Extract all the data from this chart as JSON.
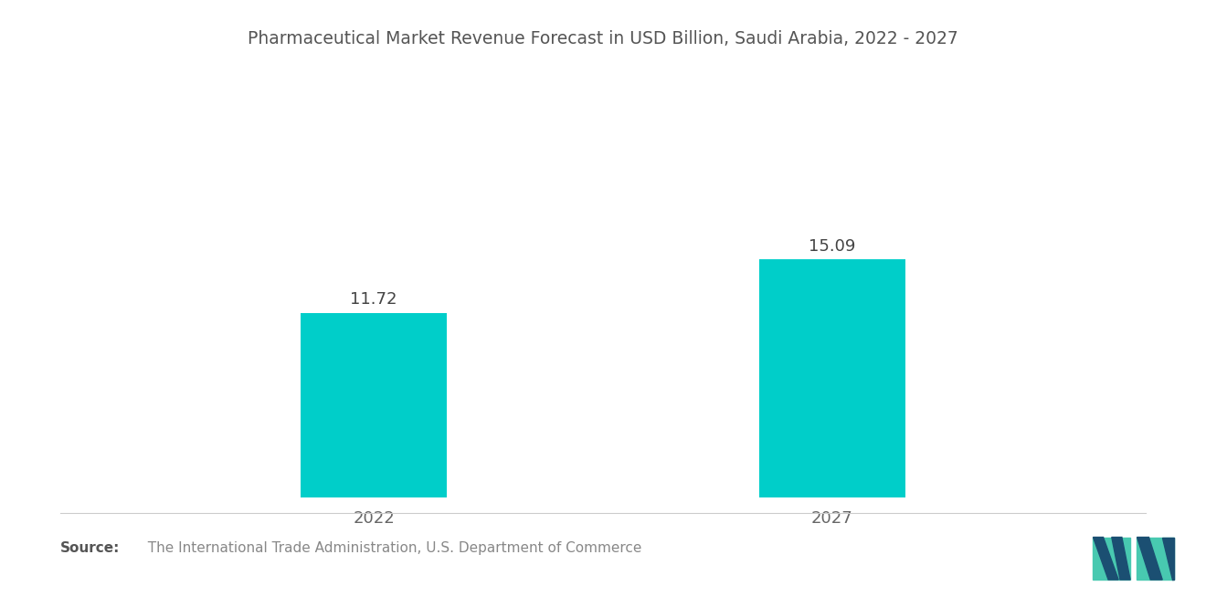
{
  "title": "Pharmaceutical Market Revenue Forecast in USD Billion, Saudi Arabia, 2022 - 2027",
  "categories": [
    "2022",
    "2027"
  ],
  "values": [
    11.72,
    15.09
  ],
  "bar_color": "#00CEC9",
  "value_labels": [
    "11.72",
    "15.09"
  ],
  "ylim": [
    0,
    20
  ],
  "title_fontsize": 13.5,
  "label_fontsize": 13,
  "value_fontsize": 13,
  "source_bold": "Source:",
  "source_text": "  The International Trade Administration, U.S. Department of Commerce",
  "source_fontsize": 11,
  "background_color": "#ffffff",
  "bar_positions": [
    1,
    2
  ],
  "bar_width": 0.32,
  "xlim": [
    0.5,
    2.5
  ]
}
